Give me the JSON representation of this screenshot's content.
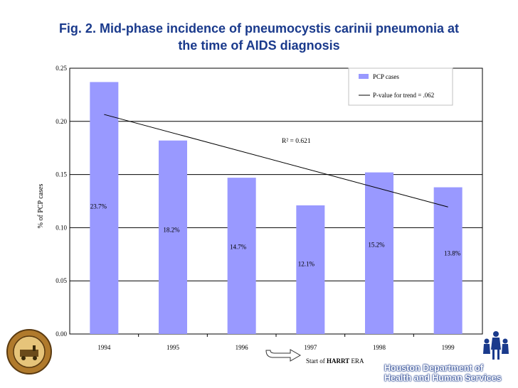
{
  "title": {
    "line1": "Fig. 2. Mid-phase incidence of pneumocystis carinii pneumonia at",
    "line2": "the time of AIDS diagnosis"
  },
  "chart_data": {
    "type": "bar",
    "categories": [
      "1994",
      "1995",
      "1996",
      "1997",
      "1998",
      "1999"
    ],
    "values": [
      0.237,
      0.182,
      0.147,
      0.121,
      0.152,
      0.138
    ],
    "data_labels": [
      "23.7%",
      "18.2%",
      "14.7%",
      "12.1%",
      "15.2%",
      "13.8%"
    ],
    "ylabel": "%  of  PCP  cases",
    "ylim": [
      0,
      0.25
    ],
    "yticks": [
      "0.00",
      "0.05",
      "0.10",
      "0.15",
      "0.20",
      "0.25"
    ],
    "grid": true,
    "legend_position": "top-right",
    "series": [
      {
        "name": "PCP cases",
        "kind": "bar",
        "color": "#9999ff"
      },
      {
        "name": "P-value for trend = .062",
        "kind": "trend-line",
        "color": "#000000",
        "start": 0.2065,
        "end": 0.1195
      }
    ],
    "annotations": {
      "r_squared": "R² = 0.621"
    }
  },
  "footer": {
    "harrt_prefix": "Start of ",
    "harrt_bold": "HARRT",
    "harrt_suffix": " ERA",
    "org_line1": "Houston Department of",
    "org_line2": "Health and Human Services"
  }
}
